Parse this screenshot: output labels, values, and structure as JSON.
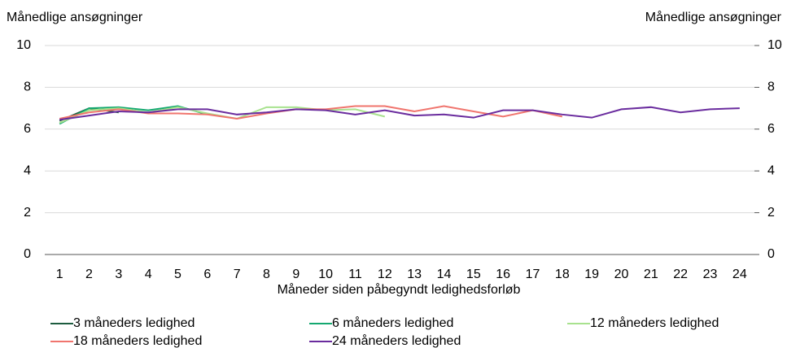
{
  "chart_data": {
    "type": "line",
    "y_label": "Månedlige ansøgninger",
    "y2_label": "Månedlige ansøgninger",
    "x_label": "Måneder siden påbegyndt ledighedsforløb",
    "categories": [
      1,
      2,
      3,
      4,
      5,
      6,
      7,
      8,
      9,
      10,
      11,
      12,
      13,
      14,
      15,
      16,
      17,
      18,
      19,
      20,
      21,
      22,
      23,
      24
    ],
    "series": [
      {
        "name": "3 måneders ledighed",
        "color": "#1d5c3f",
        "values": [
          6.4,
          7.0,
          6.8,
          null,
          null,
          null,
          null,
          null,
          null,
          null,
          null,
          null,
          null,
          null,
          null,
          null,
          null,
          null,
          null,
          null,
          null,
          null,
          null,
          null
        ]
      },
      {
        "name": "6 måneders ledighed",
        "color": "#14a870",
        "values": [
          6.25,
          7.0,
          7.05,
          6.9,
          7.1,
          6.7,
          null,
          null,
          null,
          null,
          null,
          null,
          null,
          null,
          null,
          null,
          null,
          null,
          null,
          null,
          null,
          null,
          null,
          null
        ]
      },
      {
        "name": "12 måneders ledighed",
        "color": "#a8e28e",
        "values": [
          6.3,
          6.9,
          7.0,
          6.8,
          7.05,
          6.75,
          6.5,
          7.05,
          7.05,
          6.9,
          6.95,
          6.6,
          null,
          null,
          null,
          null,
          null,
          null,
          null,
          null,
          null,
          null,
          null,
          null
        ]
      },
      {
        "name": "18 måneders ledighed",
        "color": "#f0756e",
        "values": [
          6.5,
          6.8,
          6.95,
          6.75,
          6.75,
          6.7,
          6.5,
          6.75,
          6.95,
          6.95,
          7.1,
          7.1,
          6.85,
          7.1,
          6.85,
          6.6,
          6.9,
          6.6,
          null,
          null,
          null,
          null,
          null,
          null
        ]
      },
      {
        "name": "24 måneders ledighed",
        "color": "#6a2c9e",
        "values": [
          6.45,
          6.65,
          6.85,
          6.8,
          6.95,
          6.95,
          6.7,
          6.8,
          6.95,
          6.9,
          6.7,
          6.9,
          6.65,
          6.7,
          6.55,
          6.9,
          6.9,
          6.7,
          6.55,
          6.95,
          7.05,
          6.8,
          6.95,
          7.0
        ]
      }
    ],
    "ylim": [
      0,
      10
    ],
    "yticks": [
      0,
      2,
      4,
      6,
      8,
      10
    ],
    "y2lim": [
      0,
      10
    ],
    "y2ticks": [
      0,
      2,
      4,
      6,
      8,
      10
    ],
    "grid": true
  }
}
